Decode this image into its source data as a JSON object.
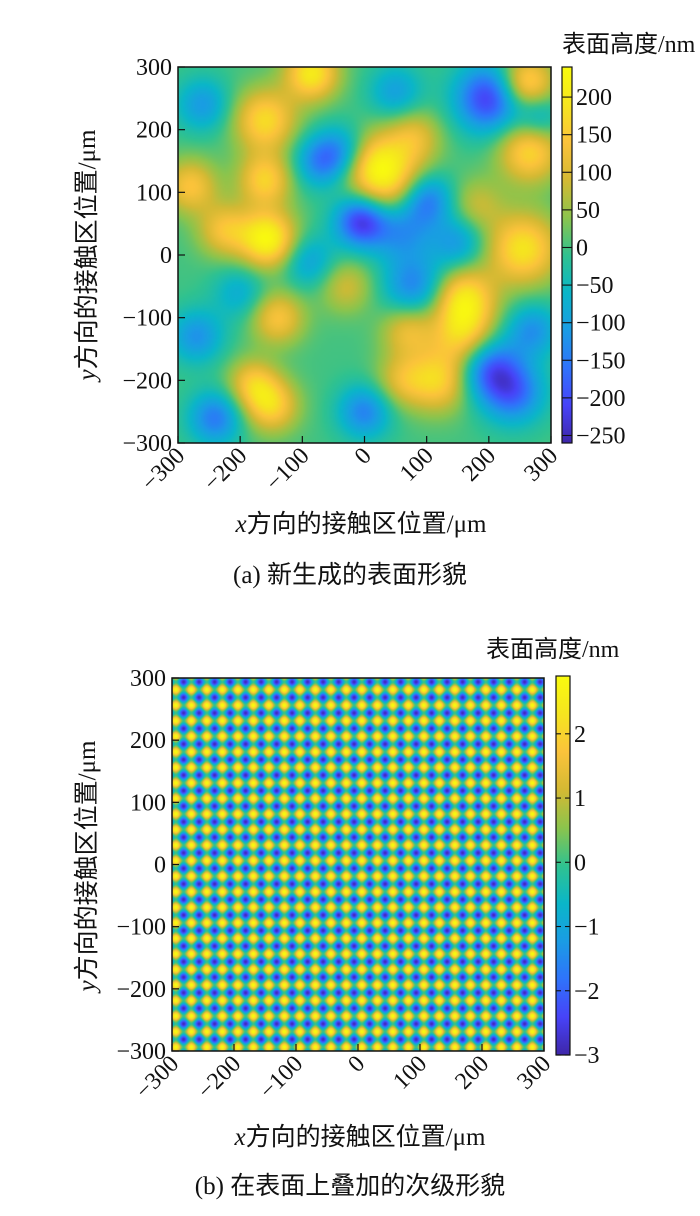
{
  "colormap": [
    "#3e26a8",
    "#4743f8",
    "#2f73fb",
    "#1a9ce4",
    "#0ab6c8",
    "#30c28f",
    "#8cc44c",
    "#d4b933",
    "#fbc33b",
    "#f5e51f",
    "#f9fb0e"
  ],
  "chart_data": [
    {
      "type": "heatmap",
      "caption": "(a) 新生成的表面形貌",
      "xlabel_var": "x",
      "xlabel": "方向的接触区位置/μm",
      "ylabel_var": "y",
      "ylabel": "方向的接触区位置/μm",
      "colorbar_label": "表面高度/nm",
      "xlim": [
        -300,
        300
      ],
      "ylim": [
        -300,
        300
      ],
      "xticks": [
        "−300",
        "−200",
        "−100",
        "0",
        "100",
        "200",
        "300"
      ],
      "xtick_values": [
        -300,
        -200,
        -100,
        0,
        100,
        200,
        300
      ],
      "yticks": [
        "−300",
        "−200",
        "−100",
        "0",
        "100",
        "200",
        "300"
      ],
      "ytick_values": [
        -300,
        -200,
        -100,
        0,
        100,
        200,
        300
      ],
      "clim": [
        -260,
        240
      ],
      "cticks": [
        "−250",
        "−200",
        "−150",
        "−100",
        "−50",
        "0",
        "50",
        "100",
        "150",
        "200"
      ],
      "ctick_values": [
        -250,
        -200,
        -150,
        -100,
        -50,
        0,
        50,
        100,
        150,
        200
      ],
      "field": "random",
      "features": [
        {
          "x": -160,
          "y": 215,
          "h": 175,
          "s": 35
        },
        {
          "x": -85,
          "y": 290,
          "h": 200,
          "s": 30
        },
        {
          "x": -160,
          "y": 120,
          "h": 160,
          "s": 30
        },
        {
          "x": -155,
          "y": 25,
          "h": 230,
          "s": 32
        },
        {
          "x": -225,
          "y": 40,
          "h": 130,
          "s": 30
        },
        {
          "x": -280,
          "y": 110,
          "h": 140,
          "s": 30
        },
        {
          "x": 40,
          "y": 115,
          "h": 170,
          "s": 45
        },
        {
          "x": 10,
          "y": 150,
          "h": 130,
          "s": 35
        },
        {
          "x": 160,
          "y": -70,
          "h": 190,
          "s": 35
        },
        {
          "x": 160,
          "y": -130,
          "h": 150,
          "s": 35
        },
        {
          "x": 120,
          "y": -200,
          "h": 160,
          "s": 35
        },
        {
          "x": 255,
          "y": 10,
          "h": 190,
          "s": 40
        },
        {
          "x": 265,
          "y": 165,
          "h": 170,
          "s": 35
        },
        {
          "x": 260,
          "y": 275,
          "h": 190,
          "s": 30
        },
        {
          "x": -150,
          "y": -240,
          "h": 160,
          "s": 30
        },
        {
          "x": -180,
          "y": -205,
          "h": 130,
          "s": 28
        },
        {
          "x": -140,
          "y": -100,
          "h": 140,
          "s": 30
        },
        {
          "x": 70,
          "y": -120,
          "h": 120,
          "s": 30
        },
        {
          "x": 60,
          "y": -200,
          "h": 100,
          "s": 30
        },
        {
          "x": -30,
          "y": -50,
          "h": 90,
          "s": 30
        },
        {
          "x": 80,
          "y": 190,
          "h": 100,
          "s": 30
        },
        {
          "x": 180,
          "y": 80,
          "h": 80,
          "s": 30
        },
        {
          "x": -70,
          "y": 150,
          "h": -140,
          "s": 30
        },
        {
          "x": -5,
          "y": 55,
          "h": -240,
          "s": 30
        },
        {
          "x": 60,
          "y": 40,
          "h": -130,
          "s": 35
        },
        {
          "x": 200,
          "y": 250,
          "h": -220,
          "s": 38
        },
        {
          "x": 100,
          "y": 90,
          "h": -170,
          "s": 30
        },
        {
          "x": -30,
          "y": 165,
          "h": -120,
          "s": 30
        },
        {
          "x": 200,
          "y": -180,
          "h": -180,
          "s": 35
        },
        {
          "x": 240,
          "y": -220,
          "h": -160,
          "s": 35
        },
        {
          "x": 270,
          "y": -120,
          "h": -120,
          "s": 30
        },
        {
          "x": 80,
          "y": -50,
          "h": -140,
          "s": 35
        },
        {
          "x": -270,
          "y": -130,
          "h": -120,
          "s": 30
        },
        {
          "x": -240,
          "y": -260,
          "h": -150,
          "s": 30
        },
        {
          "x": 0,
          "y": -250,
          "h": -140,
          "s": 30
        },
        {
          "x": 50,
          "y": 260,
          "h": -100,
          "s": 30
        },
        {
          "x": -260,
          "y": 240,
          "h": -110,
          "s": 30
        },
        {
          "x": -90,
          "y": -10,
          "h": -100,
          "s": 30
        },
        {
          "x": 150,
          "y": 20,
          "h": -110,
          "s": 30
        },
        {
          "x": 280,
          "y": 220,
          "h": -90,
          "s": 25
        },
        {
          "x": -200,
          "y": -60,
          "h": -80,
          "s": 30
        }
      ]
    },
    {
      "type": "heatmap",
      "caption": "(b) 在表面上叠加的次级形貌",
      "xlabel_var": "x",
      "xlabel": "方向的接触区位置/μm",
      "ylabel_var": "y",
      "ylabel": "方向的接触区位置/μm",
      "colorbar_label": "表面高度/nm",
      "xlim": [
        -300,
        300
      ],
      "ylim": [
        -300,
        300
      ],
      "xticks": [
        "−300",
        "−200",
        "−100",
        "0",
        "100",
        "200",
        "300"
      ],
      "xtick_values": [
        -300,
        -200,
        -100,
        0,
        100,
        200,
        300
      ],
      "yticks": [
        "−300",
        "−200",
        "−100",
        "0",
        "100",
        "200",
        "300"
      ],
      "ytick_values": [
        -300,
        -200,
        -100,
        0,
        100,
        200,
        300
      ],
      "clim": [
        -3,
        2.9
      ],
      "cticks": [
        "−3",
        "−2",
        "−1",
        "0",
        "1",
        "2"
      ],
      "ctick_values": [
        -3,
        -2,
        -1,
        0,
        1,
        2
      ],
      "field": "periodic",
      "amplitude": 1.45,
      "periods_per_axis": 24
    }
  ]
}
